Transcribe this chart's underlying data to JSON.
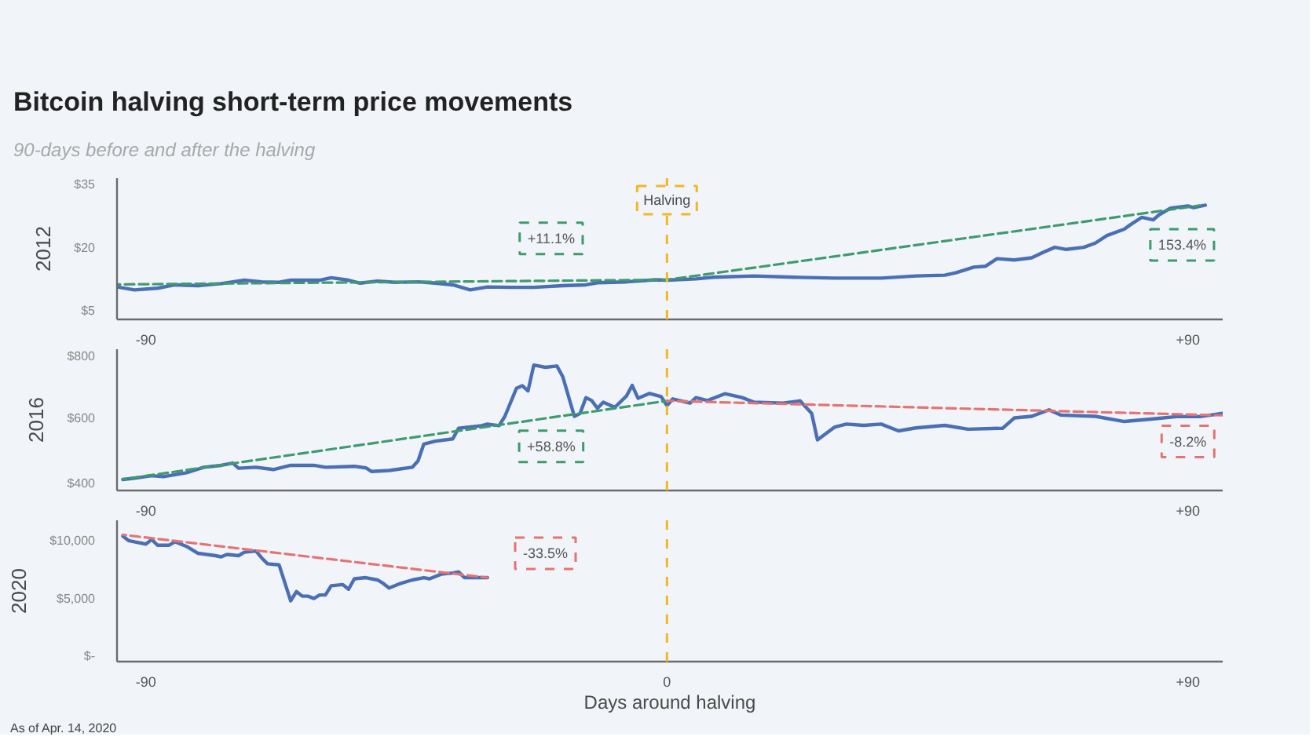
{
  "chart_data": [
    {
      "type": "line",
      "title": "Bitcoin halving short-term price movements",
      "subtitle": "90-days before and after the halving",
      "ylabel": "2012",
      "xlim": [
        -95,
        96
      ],
      "ylim": [
        3,
        36.5
      ],
      "xticks": [
        {
          "value": -90,
          "label": "-90"
        },
        {
          "value": 90,
          "label": "+90"
        }
      ],
      "yticks": [
        {
          "value": 5,
          "label": "$5"
        },
        {
          "value": 20,
          "label": "$20"
        },
        {
          "value": 35,
          "label": "$35"
        }
      ],
      "series": [
        {
          "color": "#4a6fb5",
          "x": [
            -95,
            -92,
            -88,
            -85,
            -81,
            -77,
            -73,
            -70,
            -67,
            -65,
            -60,
            -58,
            -55,
            -53,
            -50,
            -47,
            -43,
            -40,
            -37,
            -34,
            -31,
            -27,
            -23,
            -18,
            -14,
            -12,
            -7,
            -2,
            0,
            5,
            8,
            15,
            22,
            29,
            37,
            43,
            48,
            50,
            53,
            55,
            57,
            60,
            63,
            65,
            67,
            69,
            72,
            74,
            76,
            79,
            80,
            82,
            84,
            85,
            87,
            90,
            91,
            93
          ],
          "values": [
            10.7,
            10.0,
            10.4,
            11.2,
            11.0,
            11.5,
            12.3,
            11.9,
            11.8,
            12.3,
            12.3,
            12.9,
            12.3,
            11.6,
            12.1,
            11.8,
            11.9,
            11.6,
            11.2,
            10.0,
            10.7,
            10.6,
            10.6,
            11.0,
            11.2,
            11.7,
            11.9,
            12.4,
            12.3,
            12.6,
            13.0,
            13.3,
            13.0,
            12.8,
            12.8,
            13.3,
            13.5,
            14.1,
            15.4,
            15.6,
            17.4,
            17.1,
            17.6,
            18.9,
            20.1,
            19.6,
            20.1,
            21.1,
            22.9,
            24.4,
            25.4,
            27.2,
            26.6,
            27.8,
            29.4,
            29.9,
            29.5,
            30.1
          ]
        },
        {
          "type": "line",
          "color": "#3d9b6e",
          "line_style": "dashed",
          "x": [
            -95,
            0,
            92
          ],
          "values": [
            11.3,
            12.4,
            30.0
          ]
        }
      ],
      "ref_lines": [
        {
          "axis": "x",
          "value": 0,
          "label": "Halving",
          "color": "#f3b724",
          "line_style": "dashed"
        }
      ],
      "annotations": [
        {
          "text": "+11.1%",
          "x": -20,
          "y": 22.2
        },
        {
          "text": "153.4%",
          "x": 89,
          "y": 20.7
        }
      ]
    },
    {
      "type": "line",
      "ylabel": "2016",
      "xlim": [
        -95,
        96
      ],
      "ylim": [
        377,
        815
      ],
      "xticks": [
        {
          "value": -90,
          "label": "-90"
        },
        {
          "value": 90,
          "label": "+90"
        }
      ],
      "yticks": [
        {
          "value": 400,
          "label": "$400"
        },
        {
          "value": 600,
          "label": "$600"
        },
        {
          "value": 800,
          "label": "$800"
        }
      ],
      "series": [
        {
          "color": "#4a6fb5",
          "x": [
            -94,
            -92,
            -89,
            -87,
            -85,
            -83,
            -80,
            -77,
            -75,
            -74,
            -71,
            -68,
            -65,
            -61,
            -59,
            -54,
            -52,
            -51,
            -48,
            -44,
            -43,
            -42,
            -40,
            -37,
            -36,
            -32,
            -31,
            -29,
            -28,
            -26,
            -25,
            -24,
            -23,
            -21,
            -19,
            -18,
            -16,
            -15,
            -14,
            -13,
            -12,
            -11,
            -9,
            -7,
            -6,
            -5,
            -3,
            -1,
            0,
            1,
            4,
            5,
            7,
            10,
            13,
            15,
            20,
            23,
            25,
            26,
            29,
            31,
            34,
            37,
            40,
            43,
            48,
            52,
            58,
            60,
            63,
            66,
            68,
            74,
            79,
            84,
            88,
            92,
            96
          ],
          "values": [
            411,
            415,
            423,
            420,
            426,
            432,
            449,
            455,
            462,
            446,
            449,
            442,
            455,
            455,
            449,
            452,
            447,
            436,
            439,
            449,
            469,
            521,
            530,
            537,
            570,
            578,
            583,
            578,
            607,
            694,
            702,
            686,
            766,
            759,
            763,
            730,
            607,
            616,
            665,
            656,
            632,
            651,
            635,
            670,
            703,
            663,
            678,
            668,
            640,
            661,
            648,
            665,
            656,
            677,
            665,
            651,
            648,
            655,
            616,
            534,
            574,
            583,
            579,
            583,
            562,
            571,
            579,
            567,
            570,
            602,
            607,
            627,
            611,
            607,
            591,
            599,
            606,
            606,
            616
          ]
        },
        {
          "type": "line",
          "color": "#3d9b6e",
          "line_style": "dashed",
          "x": [
            -94,
            0
          ],
          "values": [
            412,
            655
          ]
        },
        {
          "type": "line",
          "color": "#e57373",
          "line_style": "dashed",
          "x": [
            0,
            96
          ],
          "values": [
            655,
            610
          ]
        }
      ],
      "ref_lines": [
        {
          "axis": "x",
          "value": 0,
          "color": "#f3b724",
          "line_style": "dashed"
        }
      ],
      "annotations": [
        {
          "text": "+58.8%",
          "x": -20,
          "y": 514
        },
        {
          "text": "-8.2%",
          "x": 90,
          "y": 529
        }
      ]
    },
    {
      "type": "line",
      "ylabel": "2020",
      "xlabel": "Days around halving",
      "xlim": [
        -95,
        96
      ],
      "ylim": [
        -450,
        11750
      ],
      "xticks": [
        {
          "value": -90,
          "label": "-90"
        },
        {
          "value": 0,
          "label": "0"
        },
        {
          "value": 90,
          "label": "+90"
        }
      ],
      "yticks": [
        {
          "value": 0,
          "label": "$-"
        },
        {
          "value": 5000,
          "label": "$5,000"
        },
        {
          "value": 10000,
          "label": "$10,000"
        }
      ],
      "series": [
        {
          "color": "#4a6fb5",
          "x": [
            -94,
            -93,
            -92,
            -90,
            -89,
            -88,
            -86,
            -85,
            -83,
            -81,
            -78,
            -77,
            -76,
            -74,
            -73,
            -71,
            -70,
            -69,
            -67,
            -65,
            -64,
            -63,
            -62,
            -61,
            -60,
            -59,
            -58,
            -56,
            -55,
            -54,
            -52,
            -50,
            -49,
            -48,
            -46,
            -44,
            -42,
            -41,
            -39,
            -37,
            -36,
            -35,
            -32,
            -31
          ],
          "values": [
            10400,
            10000,
            9900,
            9700,
            10100,
            9600,
            9600,
            9900,
            9500,
            8900,
            8700,
            8600,
            8800,
            8700,
            9000,
            9100,
            8500,
            8000,
            7900,
            4800,
            5600,
            5200,
            5200,
            5000,
            5300,
            5300,
            6100,
            6200,
            5800,
            6700,
            6800,
            6600,
            6300,
            5900,
            6300,
            6600,
            6800,
            6700,
            7100,
            7200,
            7300,
            6800,
            6800,
            6800
          ]
        },
        {
          "type": "line",
          "color": "#e57373",
          "line_style": "dashed",
          "x": [
            -94,
            -31
          ],
          "values": [
            10500,
            6800
          ]
        }
      ],
      "ref_lines": [
        {
          "axis": "x",
          "value": 0,
          "color": "#f3b724",
          "line_style": "dashed"
        }
      ],
      "annotations": [
        {
          "text": "-33.5%",
          "x": -21,
          "y": 8900
        },
        "As of Apr. 14, 2020"
      ]
    }
  ]
}
